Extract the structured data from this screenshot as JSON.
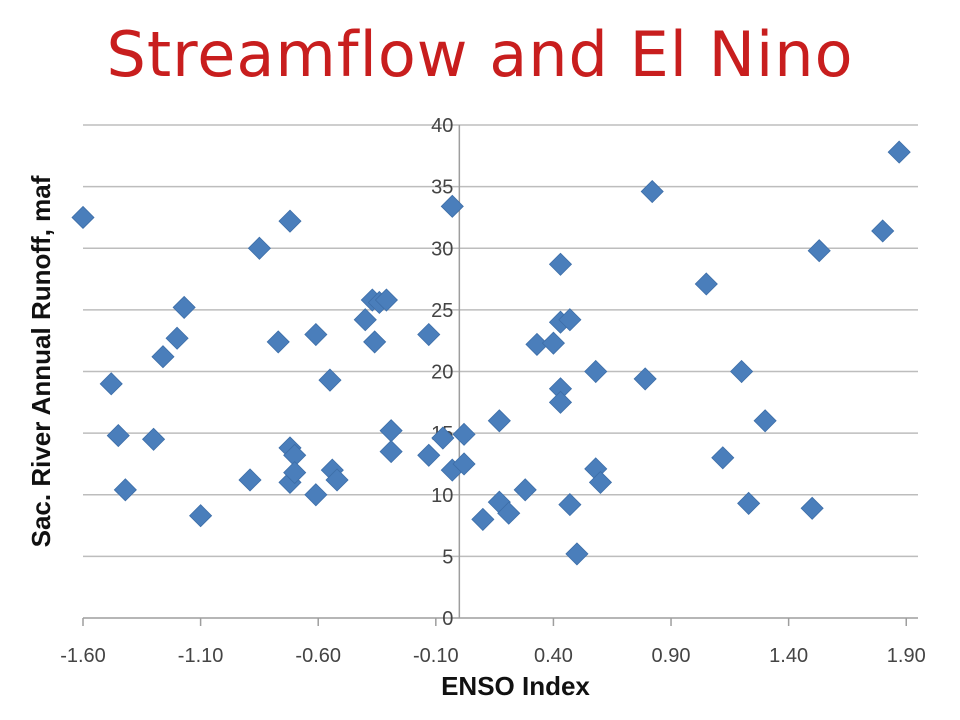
{
  "chart_data": {
    "type": "scatter",
    "title": "Streamflow and El Nino",
    "xlabel": "ENSO Index",
    "ylabel": "Sac.  River Annual Runoff, maf",
    "xlim": [
      -1.6,
      1.95
    ],
    "ylim": [
      0,
      40
    ],
    "x_ticks": [
      "-1.60",
      "-1.10",
      "-0.60",
      "-0.10",
      "0.40",
      "0.90",
      "1.40",
      "1.90"
    ],
    "y_ticks": [
      "0",
      "5",
      "10",
      "15",
      "20",
      "25",
      "30",
      "35",
      "40"
    ],
    "grid": "horizontal",
    "legend": "none",
    "marker": "diamond",
    "color": "#4a7ebb",
    "points": [
      [
        -1.6,
        32.5
      ],
      [
        -1.48,
        19.0
      ],
      [
        -1.45,
        14.8
      ],
      [
        -1.42,
        10.4
      ],
      [
        -1.3,
        14.5
      ],
      [
        -1.26,
        21.2
      ],
      [
        -1.2,
        22.7
      ],
      [
        -1.17,
        25.2
      ],
      [
        -1.1,
        8.3
      ],
      [
        -0.89,
        11.2
      ],
      [
        -0.85,
        30.0
      ],
      [
        -0.77,
        22.4
      ],
      [
        -0.72,
        32.2
      ],
      [
        -0.72,
        13.8
      ],
      [
        -0.72,
        11.0
      ],
      [
        -0.7,
        13.2
      ],
      [
        -0.7,
        11.8
      ],
      [
        -0.61,
        23.0
      ],
      [
        -0.61,
        10.0
      ],
      [
        -0.55,
        19.3
      ],
      [
        -0.54,
        12.0
      ],
      [
        -0.52,
        11.2
      ],
      [
        -0.4,
        24.2
      ],
      [
        -0.37,
        25.8
      ],
      [
        -0.36,
        22.4
      ],
      [
        -0.34,
        25.6
      ],
      [
        -0.31,
        25.8
      ],
      [
        -0.29,
        15.2
      ],
      [
        -0.29,
        13.5
      ],
      [
        -0.13,
        23.0
      ],
      [
        -0.13,
        13.2
      ],
      [
        -0.07,
        14.6
      ],
      [
        -0.03,
        33.4
      ],
      [
        -0.03,
        12.0
      ],
      [
        0.02,
        12.5
      ],
      [
        0.02,
        14.9
      ],
      [
        0.1,
        8.0
      ],
      [
        0.17,
        16.0
      ],
      [
        0.17,
        9.4
      ],
      [
        0.21,
        8.5
      ],
      [
        0.28,
        10.4
      ],
      [
        0.33,
        22.2
      ],
      [
        0.4,
        22.3
      ],
      [
        0.43,
        28.7
      ],
      [
        0.43,
        24.0
      ],
      [
        0.43,
        18.6
      ],
      [
        0.43,
        17.5
      ],
      [
        0.47,
        24.2
      ],
      [
        0.47,
        9.2
      ],
      [
        0.5,
        5.2
      ],
      [
        0.58,
        20.0
      ],
      [
        0.58,
        12.1
      ],
      [
        0.6,
        11.0
      ],
      [
        0.79,
        19.4
      ],
      [
        0.82,
        34.6
      ],
      [
        1.05,
        27.1
      ],
      [
        1.12,
        13.0
      ],
      [
        1.2,
        20.0
      ],
      [
        1.23,
        9.3
      ],
      [
        1.3,
        16.0
      ],
      [
        1.5,
        8.9
      ],
      [
        1.53,
        29.8
      ],
      [
        1.8,
        31.4
      ],
      [
        1.87,
        37.8
      ]
    ]
  }
}
